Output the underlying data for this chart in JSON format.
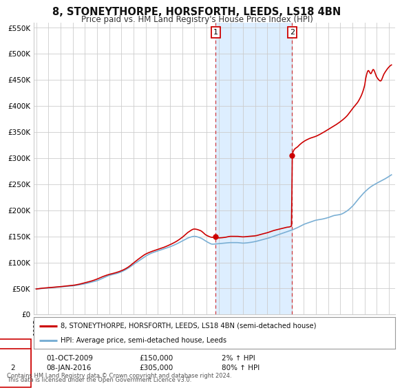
{
  "title": "8, STONEYTHORPE, HORSFORTH, LEEDS, LS18 4BN",
  "subtitle": "Price paid vs. HM Land Registry's House Price Index (HPI)",
  "legend_line1": "8, STONEYTHORPE, HORSFORTH, LEEDS, LS18 4BN (semi-detached house)",
  "legend_line2": "HPI: Average price, semi-detached house, Leeds",
  "annotation1_label": "1",
  "annotation1_date": "01-OCT-2009",
  "annotation1_price": "£150,000",
  "annotation1_hpi": "2% ↑ HPI",
  "annotation2_label": "2",
  "annotation2_date": "08-JAN-2016",
  "annotation2_price": "£305,000",
  "annotation2_hpi": "80% ↑ HPI",
  "footnote1": "Contains HM Land Registry data © Crown copyright and database right 2024.",
  "footnote2": "This data is licensed under the Open Government Licence v3.0.",
  "red_color": "#cc0000",
  "blue_color": "#7aafd4",
  "shaded_color": "#ddeeff",
  "grid_color": "#cccccc",
  "background_color": "#ffffff",
  "ylim": [
    0,
    560000
  ],
  "yticks": [
    0,
    50000,
    100000,
    150000,
    200000,
    250000,
    300000,
    350000,
    400000,
    450000,
    500000,
    550000
  ],
  "ytick_labels": [
    "£0",
    "£50K",
    "£100K",
    "£150K",
    "£200K",
    "£250K",
    "£300K",
    "£350K",
    "£400K",
    "£450K",
    "£500K",
    "£550K"
  ],
  "sale1_year": 2009.75,
  "sale1_value": 150000,
  "sale2_year": 2016.03,
  "sale2_value": 305000,
  "xmin": 1994.8,
  "xmax": 2024.5,
  "hpi_years": [
    1995.0,
    1995.5,
    1996.0,
    1996.5,
    1997.0,
    1997.5,
    1998.0,
    1998.5,
    1999.0,
    1999.5,
    2000.0,
    2000.5,
    2001.0,
    2001.5,
    2002.0,
    2002.5,
    2003.0,
    2003.5,
    2004.0,
    2004.5,
    2005.0,
    2005.5,
    2006.0,
    2006.5,
    2007.0,
    2007.5,
    2008.0,
    2008.5,
    2009.0,
    2009.5,
    2010.0,
    2010.5,
    2011.0,
    2011.5,
    2012.0,
    2012.5,
    2013.0,
    2013.5,
    2014.0,
    2014.5,
    2015.0,
    2015.5,
    2016.0,
    2016.5,
    2017.0,
    2017.5,
    2018.0,
    2018.5,
    2019.0,
    2019.5,
    2020.0,
    2020.5,
    2021.0,
    2021.5,
    2022.0,
    2022.5,
    2023.0,
    2023.5,
    2024.0
  ],
  "hpi_values": [
    49000,
    50000,
    51000,
    52000,
    53000,
    54000,
    55000,
    57000,
    59000,
    62000,
    65000,
    70000,
    75000,
    78000,
    82000,
    88000,
    96000,
    104000,
    112000,
    118000,
    122000,
    126000,
    130000,
    135000,
    141000,
    147000,
    150000,
    147000,
    140000,
    135000,
    136000,
    137000,
    138000,
    138000,
    137000,
    138000,
    140000,
    143000,
    146000,
    150000,
    154000,
    158000,
    162000,
    167000,
    173000,
    177000,
    181000,
    183000,
    186000,
    190000,
    192000,
    198000,
    208000,
    222000,
    235000,
    245000,
    252000,
    258000,
    265000
  ],
  "red_years": [
    1995.0,
    1995.5,
    1996.0,
    1996.5,
    1997.0,
    1997.5,
    1998.0,
    1998.5,
    1999.0,
    1999.5,
    2000.0,
    2000.5,
    2001.0,
    2001.5,
    2002.0,
    2002.5,
    2003.0,
    2003.5,
    2004.0,
    2004.5,
    2005.0,
    2005.5,
    2006.0,
    2006.5,
    2007.0,
    2007.5,
    2008.0,
    2008.5,
    2009.0,
    2009.5,
    2009.75,
    2010.0,
    2010.5,
    2011.0,
    2011.5,
    2012.0,
    2012.5,
    2013.0,
    2013.5,
    2014.0,
    2014.5,
    2015.0,
    2015.5,
    2016.0,
    2016.03,
    2016.5,
    2017.0,
    2017.5,
    2018.0,
    2018.5,
    2019.0,
    2019.5,
    2020.0,
    2020.5,
    2021.0,
    2021.5,
    2022.0,
    2022.1,
    2022.3,
    2022.5,
    2022.7,
    2023.0,
    2023.3,
    2023.6,
    2024.0
  ],
  "red_values": [
    49000,
    50500,
    51500,
    52500,
    53500,
    55000,
    56000,
    58000,
    61000,
    64000,
    68000,
    73000,
    77000,
    80000,
    84000,
    90000,
    99000,
    108000,
    116000,
    121000,
    125000,
    129000,
    134000,
    140000,
    148000,
    158000,
    164000,
    161000,
    152000,
    148000,
    150000,
    147000,
    148000,
    150000,
    150000,
    149000,
    150000,
    151000,
    154000,
    157000,
    161000,
    164000,
    167000,
    170000,
    305000,
    322000,
    332000,
    338000,
    342000,
    348000,
    355000,
    362000,
    370000,
    380000,
    395000,
    410000,
    440000,
    455000,
    468000,
    462000,
    470000,
    455000,
    448000,
    462000,
    475000
  ]
}
